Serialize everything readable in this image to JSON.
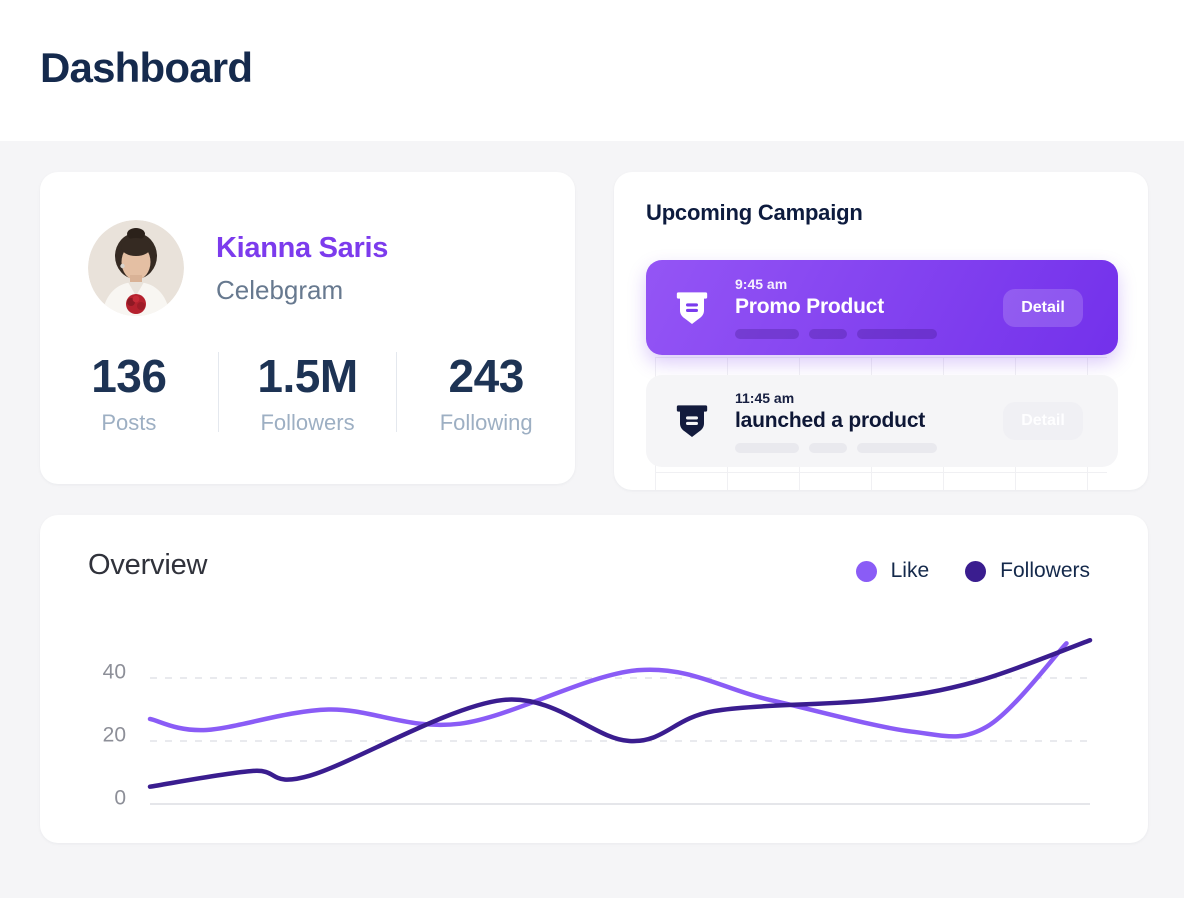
{
  "header": {
    "title": "Dashboard"
  },
  "profile": {
    "name": "Kianna Saris",
    "handle": "Celebgram",
    "stats": [
      {
        "value": "136",
        "label": "Posts"
      },
      {
        "value": "1.5M",
        "label": "Followers"
      },
      {
        "value": "243",
        "label": "Following"
      }
    ]
  },
  "campaign": {
    "title": "Upcoming Campaign",
    "items": [
      {
        "time": "9:45 am",
        "title": "Promo Product",
        "button": "Detail",
        "emphasized": true
      },
      {
        "time": "11:45 am",
        "title": "launched a product",
        "button": "Detail",
        "emphasized": false
      }
    ]
  },
  "overview": {
    "title": "Overview"
  },
  "chart_data": {
    "type": "line",
    "title": "Overview",
    "xlabel": "",
    "ylabel": "",
    "yticks": [
      0,
      20,
      40
    ],
    "ylim": [
      0,
      55
    ],
    "grid": "dashed horizontal gridlines at 20 and 40, solid baseline at 0",
    "legend_position": "top-right",
    "line_style": "smooth curves, no markers, no x-axis labels",
    "series": [
      {
        "name": "Like",
        "color": "#8A5CF6",
        "points": [
          [
            0,
            27
          ],
          [
            0.06,
            23.5
          ],
          [
            0.19,
            30
          ],
          [
            0.33,
            25.5
          ],
          [
            0.52,
            42.5
          ],
          [
            0.66,
            33
          ],
          [
            0.81,
            23
          ],
          [
            0.89,
            24.5
          ],
          [
            0.975,
            51
          ]
        ]
      },
      {
        "name": "Followers",
        "color": "#3A1D8F",
        "points": [
          [
            0,
            5.5
          ],
          [
            0.11,
            10.5
          ],
          [
            0.17,
            9
          ],
          [
            0.375,
            33
          ],
          [
            0.51,
            20
          ],
          [
            0.6,
            29.5
          ],
          [
            0.77,
            33
          ],
          [
            0.88,
            39
          ],
          [
            1,
            52
          ]
        ]
      }
    ]
  },
  "colors": {
    "page_background": "#F5F5F7",
    "header_background": "#FFFFFF",
    "title_navy": "#152A4D",
    "accent_purple": "#7C3BED",
    "campaign_gradient_start": "#9455F5",
    "campaign_gradient_end": "#7331EB",
    "like_line": "#8A5CF6",
    "followers_line": "#3A1D8F",
    "axis_text": "#8D8F98",
    "gridline": "#E2E3E8"
  }
}
